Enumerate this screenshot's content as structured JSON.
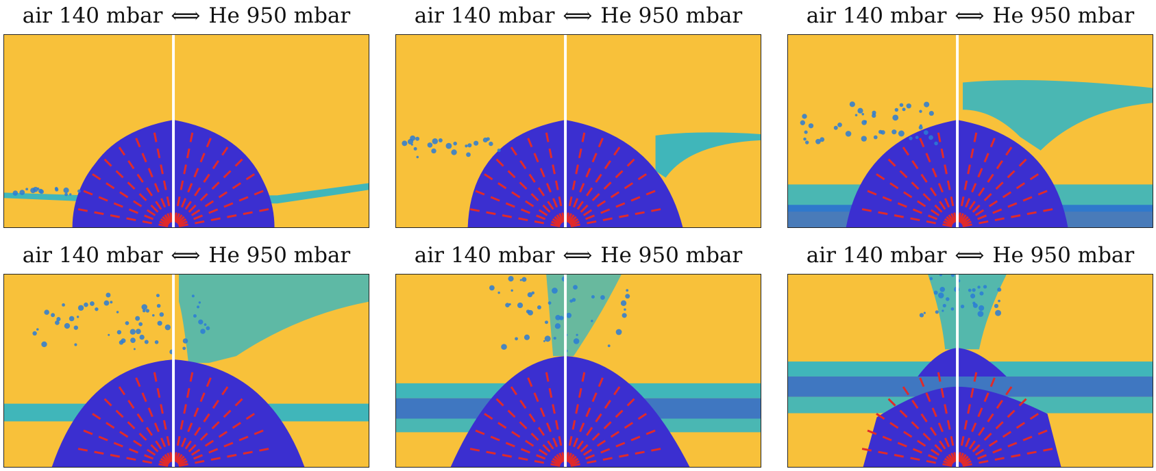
{
  "panels": [
    {
      "left_label": "air 140 mbar",
      "arrow": "⟺",
      "right_label": "He 950 mbar"
    },
    {
      "left_label": "air 140 mbar",
      "arrow": "⟺",
      "right_label": "He 950 mbar"
    },
    {
      "left_label": "air 140 mbar",
      "arrow": "⟺",
      "right_label": "He 950 mbar"
    },
    {
      "left_label": "air 140 mbar",
      "arrow": "⟺",
      "right_label": "He 950 mbar"
    },
    {
      "left_label": "air 140 mbar",
      "arrow": "⟺",
      "right_label": "He 950 mbar"
    },
    {
      "left_label": "air 140 mbar",
      "arrow": "⟺",
      "right_label": "He 950 mbar"
    }
  ],
  "colors": {
    "background": "#f8c13a",
    "drop": "#3b2fd0",
    "film": "#2bb5c9",
    "spray": "#2a7bd6",
    "rays": "#e02a2a",
    "divider": "#ffffff"
  }
}
